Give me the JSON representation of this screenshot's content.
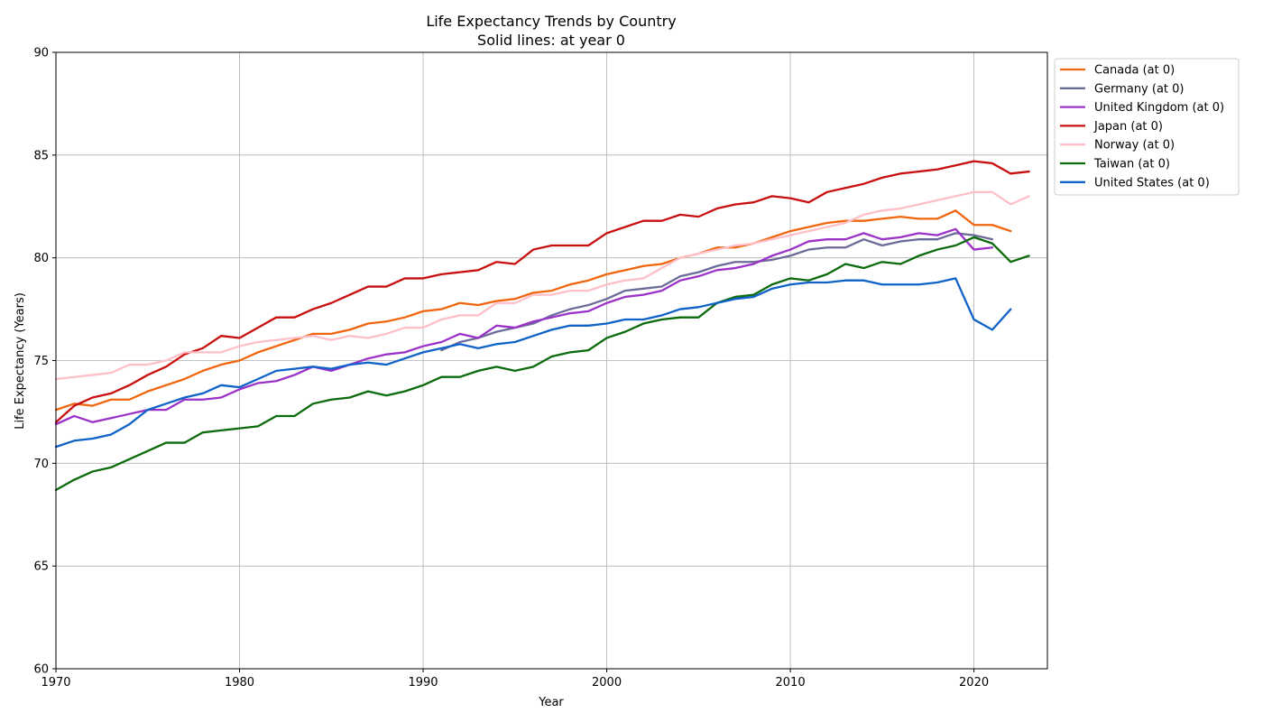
{
  "chart_data": {
    "type": "line",
    "title": "Life Expectancy Trends by Country",
    "subtitle": "Solid lines: at year 0",
    "xlabel": "Year",
    "ylabel": "Life Expectancy (Years)",
    "xlim": [
      1970,
      2024
    ],
    "ylim": [
      60,
      90
    ],
    "xticks": [
      1970,
      1980,
      1990,
      2000,
      2010,
      2020
    ],
    "yticks": [
      60,
      65,
      70,
      75,
      80,
      85,
      90
    ],
    "grid": true,
    "legend_position": "outside-right-top",
    "series": [
      {
        "name": "Canada (at 0)",
        "color": "#f0650e",
        "x": [
          1970,
          1971,
          1972,
          1973,
          1974,
          1975,
          1976,
          1977,
          1978,
          1979,
          1980,
          1981,
          1982,
          1983,
          1984,
          1985,
          1986,
          1987,
          1988,
          1989,
          1990,
          1991,
          1992,
          1993,
          1994,
          1995,
          1996,
          1997,
          1998,
          1999,
          2000,
          2001,
          2002,
          2003,
          2004,
          2005,
          2006,
          2007,
          2008,
          2009,
          2010,
          2011,
          2012,
          2013,
          2014,
          2015,
          2016,
          2017,
          2018,
          2019,
          2020,
          2021,
          2022
        ],
        "values": [
          72.6,
          72.9,
          72.8,
          73.1,
          73.1,
          73.5,
          73.8,
          74.1,
          74.5,
          74.8,
          75.0,
          75.4,
          75.7,
          76.0,
          76.3,
          76.3,
          76.5,
          76.8,
          76.9,
          77.1,
          77.4,
          77.5,
          77.8,
          77.7,
          77.9,
          78.0,
          78.3,
          78.4,
          78.7,
          78.9,
          79.2,
          79.4,
          79.6,
          79.7,
          80.0,
          80.2,
          80.5,
          80.5,
          80.7,
          81.0,
          81.3,
          81.5,
          81.7,
          81.8,
          81.8,
          81.9,
          82.0,
          81.9,
          81.9,
          82.3,
          81.6,
          81.6,
          81.3
        ]
      },
      {
        "name": "Germany (at 0)",
        "color": "#6b6b9a",
        "x": [
          1991,
          1992,
          1993,
          1994,
          1995,
          1996,
          1997,
          1998,
          1999,
          2000,
          2001,
          2002,
          2003,
          2004,
          2005,
          2006,
          2007,
          2008,
          2009,
          2010,
          2011,
          2012,
          2013,
          2014,
          2015,
          2016,
          2017,
          2018,
          2019,
          2020,
          2021
        ],
        "values": [
          75.5,
          75.9,
          76.1,
          76.4,
          76.6,
          76.8,
          77.2,
          77.5,
          77.7,
          78.0,
          78.4,
          78.5,
          78.6,
          79.1,
          79.3,
          79.6,
          79.8,
          79.8,
          79.9,
          80.1,
          80.4,
          80.5,
          80.5,
          80.9,
          80.6,
          80.8,
          80.9,
          80.9,
          81.2,
          81.1,
          80.9
        ]
      },
      {
        "name": "United Kingdom (at 0)",
        "color": "#9b32c8",
        "x": [
          1970,
          1971,
          1972,
          1973,
          1974,
          1975,
          1976,
          1977,
          1978,
          1979,
          1980,
          1981,
          1982,
          1983,
          1984,
          1985,
          1986,
          1987,
          1988,
          1989,
          1990,
          1991,
          1992,
          1993,
          1994,
          1995,
          1996,
          1997,
          1998,
          1999,
          2000,
          2001,
          2002,
          2003,
          2004,
          2005,
          2006,
          2007,
          2008,
          2009,
          2010,
          2011,
          2012,
          2013,
          2014,
          2015,
          2016,
          2017,
          2018,
          2019,
          2020,
          2021
        ],
        "values": [
          71.9,
          72.3,
          72.0,
          72.2,
          72.4,
          72.6,
          72.6,
          73.1,
          73.1,
          73.2,
          73.6,
          73.9,
          74.0,
          74.3,
          74.7,
          74.5,
          74.8,
          75.1,
          75.3,
          75.4,
          75.7,
          75.9,
          76.3,
          76.1,
          76.7,
          76.6,
          76.9,
          77.1,
          77.3,
          77.4,
          77.8,
          78.1,
          78.2,
          78.4,
          78.9,
          79.1,
          79.4,
          79.5,
          79.7,
          80.1,
          80.4,
          80.8,
          80.9,
          80.9,
          81.2,
          80.9,
          81.0,
          81.2,
          81.1,
          81.4,
          80.4,
          80.5
        ]
      },
      {
        "name": "Japan (at 0)",
        "color": "#c80f0f",
        "x": [
          1970,
          1971,
          1972,
          1973,
          1974,
          1975,
          1976,
          1977,
          1978,
          1979,
          1980,
          1981,
          1982,
          1983,
          1984,
          1985,
          1986,
          1987,
          1988,
          1989,
          1990,
          1991,
          1992,
          1993,
          1994,
          1995,
          1996,
          1997,
          1998,
          1999,
          2000,
          2001,
          2002,
          2003,
          2004,
          2005,
          2006,
          2007,
          2008,
          2009,
          2010,
          2011,
          2012,
          2013,
          2014,
          2015,
          2016,
          2017,
          2018,
          2019,
          2020,
          2021,
          2022,
          2023
        ],
        "values": [
          72.0,
          72.8,
          73.2,
          73.4,
          73.8,
          74.3,
          74.7,
          75.3,
          75.6,
          76.2,
          76.1,
          76.6,
          77.1,
          77.1,
          77.5,
          77.8,
          78.2,
          78.6,
          78.6,
          79.0,
          79.0,
          79.2,
          79.3,
          79.4,
          79.8,
          79.7,
          80.4,
          80.6,
          80.6,
          80.6,
          81.2,
          81.5,
          81.8,
          81.8,
          82.1,
          82.0,
          82.4,
          82.6,
          82.7,
          83.0,
          82.9,
          82.7,
          83.2,
          83.4,
          83.6,
          83.9,
          84.1,
          84.2,
          84.3,
          84.5,
          84.7,
          84.6,
          84.1,
          84.2
        ]
      },
      {
        "name": "Norway (at 0)",
        "color": "#ffbfc8",
        "x": [
          1970,
          1971,
          1972,
          1973,
          1974,
          1975,
          1976,
          1977,
          1978,
          1979,
          1980,
          1981,
          1982,
          1983,
          1984,
          1985,
          1986,
          1987,
          1988,
          1989,
          1990,
          1991,
          1992,
          1993,
          1994,
          1995,
          1996,
          1997,
          1998,
          1999,
          2000,
          2001,
          2002,
          2003,
          2004,
          2005,
          2006,
          2007,
          2008,
          2009,
          2010,
          2011,
          2012,
          2013,
          2014,
          2015,
          2016,
          2017,
          2018,
          2019,
          2020,
          2021,
          2022,
          2023
        ],
        "values": [
          74.1,
          74.2,
          74.3,
          74.4,
          74.8,
          74.8,
          75.0,
          75.4,
          75.4,
          75.4,
          75.7,
          75.9,
          76.0,
          76.1,
          76.2,
          76.0,
          76.2,
          76.1,
          76.3,
          76.6,
          76.6,
          77.0,
          77.2,
          77.2,
          77.8,
          77.8,
          78.2,
          78.2,
          78.4,
          78.4,
          78.7,
          78.9,
          79.0,
          79.5,
          80.0,
          80.2,
          80.4,
          80.6,
          80.7,
          80.9,
          81.1,
          81.3,
          81.5,
          81.7,
          82.1,
          82.3,
          82.4,
          82.6,
          82.8,
          83.0,
          83.2,
          83.2,
          82.6,
          83.0
        ]
      },
      {
        "name": "Taiwan (at 0)",
        "color": "#0b6a0b",
        "x": [
          1970,
          1971,
          1972,
          1973,
          1974,
          1975,
          1976,
          1977,
          1978,
          1979,
          1980,
          1981,
          1982,
          1983,
          1984,
          1985,
          1986,
          1987,
          1988,
          1989,
          1990,
          1991,
          1992,
          1993,
          1994,
          1995,
          1996,
          1997,
          1998,
          1999,
          2000,
          2001,
          2002,
          2003,
          2004,
          2005,
          2006,
          2007,
          2008,
          2009,
          2010,
          2011,
          2012,
          2013,
          2014,
          2015,
          2016,
          2017,
          2018,
          2019,
          2020,
          2021,
          2022,
          2023
        ],
        "values": [
          68.7,
          69.2,
          69.6,
          69.8,
          70.2,
          70.6,
          71.0,
          71.0,
          71.5,
          71.6,
          71.7,
          71.8,
          72.3,
          72.3,
          72.9,
          73.1,
          73.2,
          73.5,
          73.3,
          73.5,
          73.8,
          74.2,
          74.2,
          74.5,
          74.7,
          74.5,
          74.7,
          75.2,
          75.4,
          75.5,
          76.1,
          76.4,
          76.8,
          77.0,
          77.1,
          77.1,
          77.8,
          78.1,
          78.2,
          78.7,
          79.0,
          78.9,
          79.2,
          79.7,
          79.5,
          79.8,
          79.7,
          80.1,
          80.4,
          80.6,
          81.0,
          80.7,
          79.8,
          80.1
        ]
      },
      {
        "name": "United States (at 0)",
        "color": "#0e62c8",
        "x": [
          1970,
          1971,
          1972,
          1973,
          1974,
          1975,
          1976,
          1977,
          1978,
          1979,
          1980,
          1981,
          1982,
          1983,
          1984,
          1985,
          1986,
          1987,
          1988,
          1989,
          1990,
          1991,
          1992,
          1993,
          1994,
          1995,
          1996,
          1997,
          1998,
          1999,
          2000,
          2001,
          2002,
          2003,
          2004,
          2005,
          2006,
          2007,
          2008,
          2009,
          2010,
          2011,
          2012,
          2013,
          2014,
          2015,
          2016,
          2017,
          2018,
          2019,
          2020,
          2021,
          2022
        ],
        "values": [
          70.8,
          71.1,
          71.2,
          71.4,
          71.9,
          72.6,
          72.9,
          73.2,
          73.4,
          73.8,
          73.7,
          74.1,
          74.5,
          74.6,
          74.7,
          74.6,
          74.8,
          74.9,
          74.8,
          75.1,
          75.4,
          75.6,
          75.8,
          75.6,
          75.8,
          75.9,
          76.2,
          76.5,
          76.7,
          76.7,
          76.8,
          77.0,
          77.0,
          77.2,
          77.5,
          77.6,
          77.8,
          78.0,
          78.1,
          78.5,
          78.7,
          78.8,
          78.8,
          78.9,
          78.9,
          78.7,
          78.7,
          78.7,
          78.8,
          79.0,
          77.0,
          76.5,
          77.5
        ]
      }
    ]
  }
}
